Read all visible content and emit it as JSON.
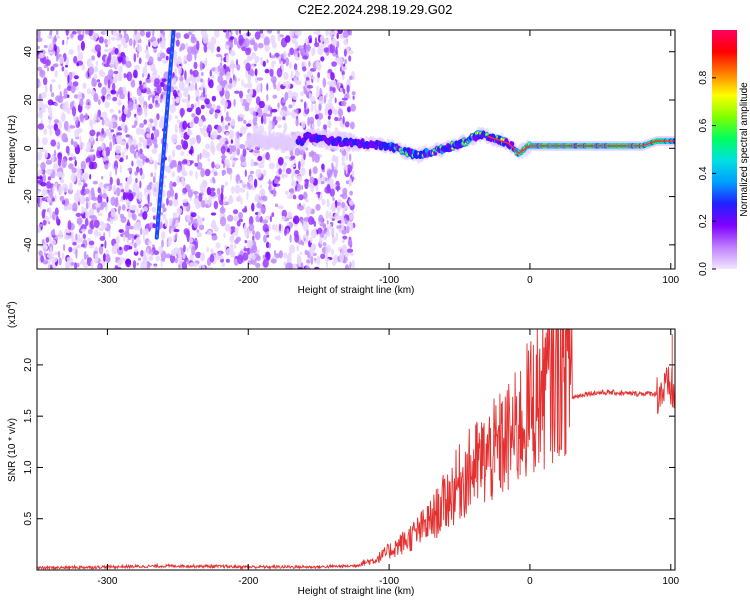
{
  "title": "C2E2.2024.298.19.29.G02",
  "chart_data": [
    {
      "type": "heatmap",
      "xlabel": "Height of straight line (km)",
      "ylabel": "Frequency (Hz)",
      "xlim": [
        -350,
        103
      ],
      "ylim": [
        -50,
        49
      ],
      "x_ticks": [
        -300,
        -200,
        -100,
        0,
        100
      ],
      "y_ticks": [
        -40,
        -20,
        0,
        20,
        40
      ],
      "colorbar": {
        "label": "Normalized spectral amplitude",
        "range": [
          0,
          1
        ],
        "ticks": [
          0.0,
          0.2,
          0.4,
          0.6,
          0.8
        ],
        "colors": [
          "#f2e6ff",
          "#c080ff",
          "#8000ff",
          "#2020ff",
          "#00a0ff",
          "#00e0e0",
          "#00ff60",
          "#80ff00",
          "#ffff00",
          "#ff8000",
          "#ff0000",
          "#ff0060"
        ]
      },
      "noise_region_x": [
        -350,
        -125
      ],
      "linear_track": {
        "x": [
          -265,
          -253
        ],
        "y": [
          -37,
          49
        ]
      },
      "tracking_line": {
        "x": [
          -160,
          -140,
          -120,
          -100,
          -80,
          -60,
          -45,
          -35,
          -25,
          -15,
          -8,
          0,
          20,
          40,
          60,
          80,
          90,
          100,
          103
        ],
        "y": [
          5,
          3,
          2,
          1,
          -3,
          0,
          3,
          6,
          4,
          2,
          -2,
          1,
          1,
          1,
          1,
          1,
          3,
          3,
          3
        ]
      },
      "grid": false
    },
    {
      "type": "line",
      "xlabel": "Height of straight line (km)",
      "ylabel": "SNR (10 * v/v)",
      "y_scale_label": "(x10",
      "y_scale_exp": "4",
      "xlim": [
        -350,
        103
      ],
      "ylim": [
        0,
        2.35
      ],
      "x_ticks": [
        -300,
        -200,
        -100,
        0,
        100
      ],
      "y_ticks": [
        0.5,
        1.0,
        1.5,
        2.0
      ],
      "series": [
        {
          "color": "#e53030",
          "x": [
            -350,
            -300,
            -250,
            -200,
            -150,
            -125,
            -110,
            -100,
            -90,
            -80,
            -70,
            -60,
            -50,
            -40,
            -30,
            -20,
            -10,
            0,
            10,
            20,
            30,
            40,
            50,
            60,
            70,
            80,
            90,
            95,
            100,
            103
          ],
          "y": [
            0.02,
            0.03,
            0.04,
            0.03,
            0.03,
            0.04,
            0.08,
            0.15,
            0.22,
            0.3,
            0.4,
            0.55,
            0.7,
            0.82,
            0.9,
            1.0,
            1.1,
            1.3,
            1.45,
            1.6,
            1.68,
            1.72,
            1.73,
            1.73,
            1.72,
            1.72,
            1.72,
            1.75,
            1.78,
            1.7
          ]
        }
      ],
      "spikes": [
        {
          "x": 10,
          "y": 2.17
        },
        {
          "x": -25,
          "y": 1.32
        },
        {
          "x": 101,
          "y": 2.3
        }
      ],
      "grid": false
    }
  ]
}
